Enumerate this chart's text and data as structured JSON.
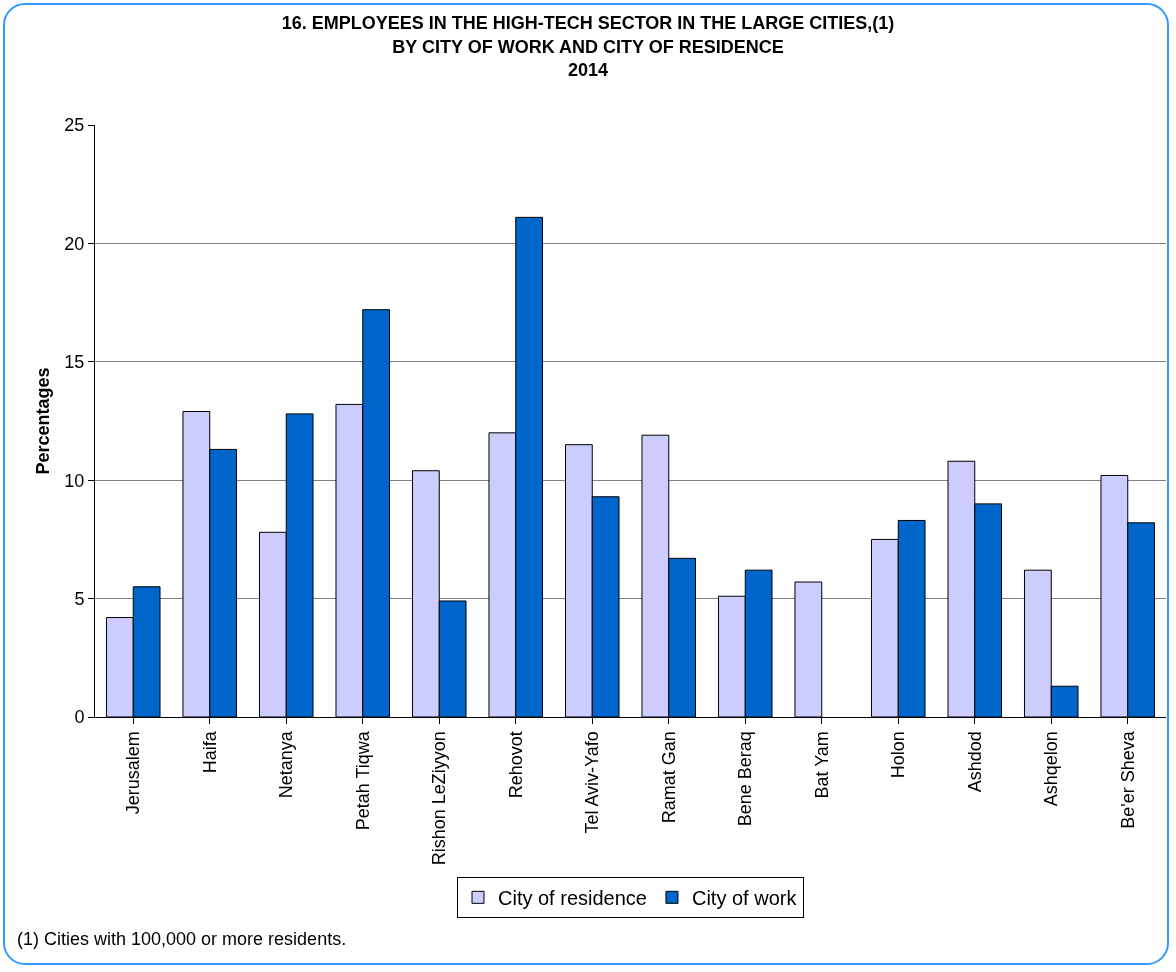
{
  "chart_data": {
    "type": "bar",
    "title": "16. EMPLOYEES IN THE HIGH-TECH SECTOR IN THE LARGE CITIES,(1)\nBY CITY OF WORK AND CITY OF RESIDENCE\n2014",
    "ylabel": "Percentages",
    "categories": [
      "Jerusalem",
      "Haifa",
      "Netanya",
      "Petah Tiqwa",
      "Rishon LeZiyyon",
      "Rehovot",
      "Tel Aviv-Yafo",
      "Ramat Gan",
      "Bene Beraq",
      "Bat Yam",
      "Holon",
      "Ashdod",
      "Ashqelon",
      "Be'er Sheva"
    ],
    "series": [
      {
        "name": "City of residence",
        "color": "#ccccff",
        "values": [
          4.2,
          12.9,
          7.8,
          13.2,
          10.4,
          12.0,
          11.5,
          11.9,
          5.1,
          5.7,
          7.5,
          10.8,
          6.2,
          10.2
        ]
      },
      {
        "name": "City of work",
        "color": "#0066cc",
        "values": [
          5.5,
          11.3,
          12.8,
          17.2,
          4.9,
          21.1,
          9.3,
          6.7,
          6.2,
          null,
          8.3,
          9.0,
          1.3,
          8.2
        ]
      }
    ],
    "ylim": [
      0,
      25
    ],
    "yticks": [
      0,
      5,
      10,
      15,
      20,
      25
    ],
    "grid": "y",
    "legend": "bottom",
    "annotations": [
      "(1) Cities with 100,000 or more residents."
    ]
  }
}
